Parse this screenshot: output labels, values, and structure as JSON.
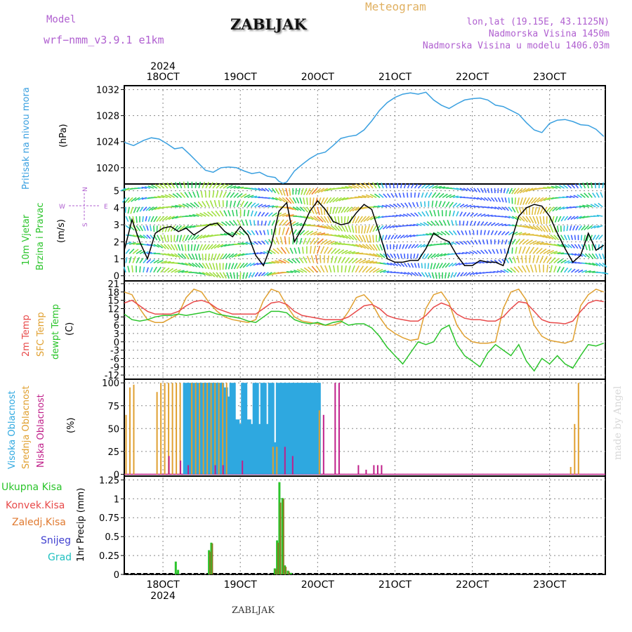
{
  "header": {
    "model_label": "Model",
    "model_name": "wrf−nmm_v3.9.1  e1km",
    "station_title": "ZABLJAK",
    "meteogram_label": "Meteogram",
    "lonlat": "lon,lat (19.15E, 43.1125N)",
    "elevation": "Nadmorska Visina 1450m",
    "model_elevation": "Nadmorska Visina u modelu 1406.03m",
    "watermark": "made by Angel",
    "footer_name": "ZABLJAK"
  },
  "colors": {
    "pressure": "#3aa0e0",
    "temp2m": "#e84a4a",
    "sfc_temp": "#e0a030",
    "dewpt": "#2bc42b",
    "high_cloud": "#2ea8e0",
    "mid_cloud": "#e0a030",
    "low_cloud": "#c0208a",
    "precip_total": "#2bc42b",
    "precip_conv": "#e84a4a",
    "precip_strat": "#e07a30",
    "snow": "#4040d0",
    "graupel": "#20c0c0",
    "title_purple": "#b060d0",
    "meteogram_orange": "#e0b060"
  },
  "time_axis": {
    "year": "2024",
    "ticks": [
      "18OCT",
      "19OCT",
      "20OCT",
      "21OCT",
      "22OCT",
      "23OCT"
    ],
    "day_range": [
      17.5,
      23.72
    ]
  },
  "chart_data": [
    {
      "type": "line",
      "panel": "pressure",
      "ylabel_lines": [
        "Pritisak na nivou mora"
      ],
      "unit": "(hPa)",
      "yticks": [
        "1020",
        "1024",
        "1028",
        "1032"
      ],
      "ylim": [
        1017.5,
        1032.6
      ],
      "grid": true,
      "series": [
        {
          "x": [
            17.5,
            17.62,
            17.75,
            17.85,
            17.95,
            18.05,
            18.15,
            18.25,
            18.35,
            18.45,
            18.55,
            18.65,
            18.75,
            18.85,
            18.95,
            19.05,
            19.15,
            19.25,
            19.35,
            19.45,
            19.5,
            19.55,
            19.6,
            19.7,
            19.8,
            19.9,
            20.0,
            20.1,
            20.2,
            20.3,
            20.4,
            20.5,
            20.6,
            20.7,
            20.8,
            20.9,
            21.0,
            21.1,
            21.2,
            21.3,
            21.4,
            21.5,
            21.6,
            21.7,
            21.8,
            21.9,
            22.0,
            22.1,
            22.2,
            22.3,
            22.4,
            22.5,
            22.6,
            22.7,
            22.8,
            22.9,
            23.0,
            23.1,
            23.2,
            23.3,
            23.4,
            23.5,
            23.6,
            23.7
          ],
          "y": [
            1023.9,
            1023.4,
            1024.2,
            1024.6,
            1024.4,
            1023.7,
            1022.9,
            1023.1,
            1022.0,
            1020.8,
            1019.6,
            1019.3,
            1020.0,
            1020.1,
            1020.0,
            1019.5,
            1019.1,
            1019.3,
            1018.7,
            1018.5,
            1017.9,
            1017.6,
            1017.8,
            1019.5,
            1020.5,
            1021.4,
            1022.1,
            1022.4,
            1023.4,
            1024.5,
            1024.8,
            1025.0,
            1025.8,
            1027.2,
            1028.8,
            1030.0,
            1030.8,
            1031.3,
            1031.5,
            1031.3,
            1031.6,
            1030.4,
            1029.6,
            1029.1,
            1029.8,
            1030.4,
            1030.6,
            1030.7,
            1030.4,
            1029.6,
            1029.4,
            1028.8,
            1028.2,
            1026.9,
            1025.8,
            1025.4,
            1026.8,
            1027.3,
            1027.4,
            1027.1,
            1026.6,
            1026.5,
            1025.9,
            1024.8
          ]
        }
      ]
    },
    {
      "type": "line",
      "panel": "wind",
      "ylabel_lines": [
        "10m  Vjetar",
        "Brzina  i Pravac"
      ],
      "unit": "(m/s)",
      "compass": {
        "n": "N",
        "s": "S",
        "w": "W",
        "e": "E"
      },
      "yticks": [
        "0",
        "1",
        "2",
        "3",
        "4",
        "5"
      ],
      "ylim": [
        -0.3,
        5.4
      ],
      "grid": true,
      "series": [
        {
          "name": "speed",
          "x": [
            17.5,
            17.6,
            17.7,
            17.8,
            17.9,
            18.0,
            18.1,
            18.2,
            18.3,
            18.4,
            18.5,
            18.6,
            18.7,
            18.8,
            18.9,
            19.0,
            19.1,
            19.2,
            19.3,
            19.4,
            19.5,
            19.6,
            19.7,
            19.8,
            19.9,
            20.0,
            20.1,
            20.2,
            20.3,
            20.4,
            20.5,
            20.6,
            20.7,
            20.8,
            20.9,
            21.0,
            21.1,
            21.2,
            21.3,
            21.4,
            21.5,
            21.6,
            21.7,
            21.8,
            21.9,
            22.0,
            22.1,
            22.2,
            22.3,
            22.4,
            22.5,
            22.6,
            22.7,
            22.8,
            22.9,
            23.0,
            23.1,
            23.2,
            23.3,
            23.4,
            23.5,
            23.6,
            23.7
          ],
          "y": [
            1.5,
            3.3,
            2.0,
            1.0,
            2.5,
            2.8,
            2.9,
            2.6,
            2.8,
            2.4,
            2.7,
            3.0,
            3.1,
            2.6,
            2.3,
            2.9,
            2.4,
            1.2,
            0.6,
            1.8,
            3.8,
            4.3,
            2.0,
            2.8,
            3.8,
            4.4,
            3.9,
            3.2,
            3.0,
            3.1,
            3.7,
            4.2,
            3.9,
            2.5,
            1.0,
            0.8,
            0.8,
            0.9,
            0.9,
            1.6,
            2.5,
            2.2,
            2.0,
            1.2,
            0.6,
            0.6,
            0.9,
            0.8,
            0.8,
            0.6,
            2.0,
            3.5,
            4.0,
            4.2,
            4.1,
            3.5,
            2.5,
            1.6,
            0.8,
            1.2,
            2.5,
            1.5,
            1.8
          ]
        }
      ]
    },
    {
      "type": "line",
      "panel": "temperature",
      "ylabel_lines": [
        "2m  Temp",
        "SFC  Temp",
        "dewpt  Temp"
      ],
      "unit": "(C)",
      "yticks": [
        "21",
        "18",
        "15",
        "12",
        "9",
        "6",
        "3",
        "0",
        "-3",
        "-6",
        "-9",
        "-12"
      ],
      "ylim": [
        -13.5,
        22
      ],
      "grid": true,
      "series": [
        {
          "name": "2m Temp",
          "x": [
            17.5,
            17.6,
            17.7,
            17.8,
            17.9,
            18.0,
            18.1,
            18.2,
            18.3,
            18.4,
            18.5,
            18.6,
            18.7,
            18.8,
            18.9,
            19.0,
            19.1,
            19.2,
            19.3,
            19.4,
            19.5,
            19.6,
            19.7,
            19.8,
            19.9,
            20.0,
            20.1,
            20.2,
            20.3,
            20.4,
            20.5,
            20.6,
            20.7,
            20.8,
            20.9,
            21.0,
            21.1,
            21.2,
            21.3,
            21.4,
            21.5,
            21.6,
            21.7,
            21.8,
            21.9,
            22.0,
            22.1,
            22.2,
            22.3,
            22.4,
            22.5,
            22.6,
            22.7,
            22.8,
            22.9,
            23.0,
            23.1,
            23.2,
            23.3,
            23.4,
            23.5,
            23.6,
            23.7
          ],
          "y": [
            14.0,
            15.0,
            13.0,
            11.0,
            10.0,
            10.0,
            10.0,
            11.0,
            13.0,
            14.5,
            15.0,
            14.0,
            12.0,
            11.0,
            10.0,
            10.0,
            10.0,
            10.0,
            12.0,
            14.0,
            14.5,
            13.5,
            11.0,
            9.5,
            9.0,
            8.5,
            8.0,
            8.0,
            8.0,
            9.0,
            11.0,
            13.0,
            13.5,
            12.0,
            9.5,
            8.5,
            8.0,
            7.5,
            7.5,
            9.5,
            12.5,
            14.0,
            13.0,
            10.0,
            8.5,
            8.0,
            8.0,
            7.5,
            7.5,
            9.0,
            12.0,
            14.5,
            14.0,
            11.0,
            8.0,
            7.0,
            6.8,
            6.5,
            7.5,
            11.0,
            14.0,
            15.0,
            14.5
          ]
        },
        {
          "name": "SFC Temp",
          "x": [
            17.5,
            17.6,
            17.7,
            17.8,
            17.9,
            18.0,
            18.1,
            18.2,
            18.3,
            18.4,
            18.5,
            18.6,
            18.7,
            18.8,
            18.9,
            19.0,
            19.1,
            19.2,
            19.3,
            19.4,
            19.5,
            19.6,
            19.7,
            19.8,
            19.9,
            20.0,
            20.1,
            20.2,
            20.3,
            20.4,
            20.5,
            20.6,
            20.7,
            20.8,
            20.9,
            21.0,
            21.1,
            21.2,
            21.3,
            21.4,
            21.5,
            21.6,
            21.7,
            21.8,
            21.9,
            22.0,
            22.1,
            22.2,
            22.3,
            22.4,
            22.5,
            22.6,
            22.7,
            22.8,
            22.9,
            23.0,
            23.1,
            23.2,
            23.3,
            23.4,
            23.5,
            23.6,
            23.7
          ],
          "y": [
            18.0,
            17.0,
            12.0,
            8.0,
            7.0,
            7.0,
            8.5,
            10.0,
            16.0,
            19.0,
            18.0,
            14.0,
            11.0,
            9.0,
            8.0,
            7.5,
            7.0,
            8.0,
            15.0,
            19.0,
            18.0,
            13.0,
            9.0,
            7.5,
            7.0,
            6.5,
            6.0,
            6.0,
            7.0,
            11.0,
            16.0,
            17.0,
            14.0,
            9.0,
            5.0,
            3.0,
            1.5,
            0.5,
            1.0,
            12.0,
            17.0,
            18.0,
            14.0,
            6.0,
            2.0,
            0.0,
            -0.5,
            -0.5,
            0.0,
            12.0,
            18.0,
            19.0,
            15.0,
            6.0,
            2.0,
            0.5,
            0.0,
            -0.5,
            0.5,
            13.0,
            17.0,
            19.0,
            18.0
          ]
        },
        {
          "name": "dewpt Temp",
          "x": [
            17.5,
            17.6,
            17.7,
            17.8,
            17.9,
            18.0,
            18.1,
            18.2,
            18.3,
            18.4,
            18.5,
            18.6,
            18.7,
            18.8,
            18.9,
            19.0,
            19.1,
            19.2,
            19.3,
            19.4,
            19.5,
            19.6,
            19.7,
            19.8,
            19.9,
            20.0,
            20.1,
            20.2,
            20.3,
            20.4,
            20.5,
            20.6,
            20.7,
            20.8,
            20.9,
            21.0,
            21.1,
            21.2,
            21.3,
            21.4,
            21.5,
            21.6,
            21.7,
            21.8,
            21.9,
            22.0,
            22.1,
            22.2,
            22.3,
            22.4,
            22.5,
            22.6,
            22.7,
            22.8,
            22.9,
            23.0,
            23.1,
            23.2,
            23.3,
            23.4,
            23.5,
            23.6,
            23.7
          ],
          "y": [
            10.0,
            8.0,
            7.5,
            8.0,
            9.0,
            9.5,
            9.5,
            10.0,
            9.5,
            10.0,
            10.5,
            11.0,
            10.0,
            9.5,
            9.0,
            8.5,
            7.5,
            7.0,
            9.0,
            11.0,
            11.0,
            10.5,
            8.0,
            7.0,
            6.5,
            7.0,
            6.0,
            7.0,
            7.5,
            6.0,
            6.5,
            6.5,
            5.0,
            2.0,
            -2.0,
            -5.0,
            -8.0,
            -4.0,
            0.0,
            -1.0,
            0.0,
            4.5,
            6.0,
            -1.0,
            -5.0,
            -7.0,
            -9.0,
            -4.0,
            -1.0,
            -3.0,
            -5.0,
            -1.0,
            -7.0,
            -10.5,
            -6.0,
            -8.0,
            -5.0,
            -8.0,
            -9.5,
            -5.0,
            -1.0,
            -1.5,
            -0.5
          ]
        }
      ]
    },
    {
      "type": "bar",
      "panel": "cloud",
      "ylabel_lines": [
        "Visoka  Oblacnost",
        "Srednja  Oblacnost",
        "Niska  Oblacnost"
      ],
      "unit": "(%)",
      "yticks": [
        "0",
        "25",
        "50",
        "75",
        "100"
      ],
      "ylim": [
        -2,
        104
      ],
      "grid": true,
      "series": [
        {
          "name": "Visoka Oblacnost",
          "x": [
            18.3,
            18.35,
            18.4,
            18.45,
            18.5,
            18.55,
            18.6,
            18.65,
            18.7,
            18.75,
            18.8,
            18.85,
            18.9,
            18.95,
            19.0,
            19.05,
            19.1,
            19.15,
            19.2,
            19.25,
            19.3,
            19.35,
            19.4,
            19.45,
            19.5,
            19.55,
            19.6,
            19.65,
            19.7,
            19.75,
            19.8,
            19.85,
            19.9,
            19.95,
            20.0
          ],
          "y": [
            100,
            100,
            100,
            100,
            100,
            100,
            100,
            100,
            100,
            100,
            95,
            85,
            100,
            60,
            55,
            100,
            60,
            55,
            100,
            55,
            100,
            55,
            100,
            35,
            100,
            100,
            100,
            100,
            100,
            100,
            100,
            100,
            100,
            100,
            100
          ]
        },
        {
          "name": "Srednja Oblacnost",
          "x": [
            17.55,
            17.6,
            17.65,
            17.95,
            18.0,
            18.05,
            18.1,
            18.15,
            18.2,
            18.25,
            18.4,
            18.45,
            18.5,
            18.55,
            18.6,
            18.65,
            18.7,
            18.75,
            18.8,
            18.85,
            19.45,
            19.5,
            20.05,
            23.3,
            23.35,
            23.4
          ],
          "y": [
            65,
            95,
            98,
            90,
            100,
            100,
            100,
            100,
            100,
            100,
            100,
            100,
            100,
            100,
            100,
            100,
            100,
            100,
            100,
            100,
            30,
            30,
            70,
            8,
            55,
            100
          ]
        },
        {
          "name": "Niska Oblacnost",
          "x": [
            18.05,
            18.2,
            18.3,
            18.65,
            18.75,
            19.0,
            19.55,
            19.65,
            20.05,
            20.2,
            20.25,
            20.5,
            20.6,
            20.7,
            20.75,
            20.8
          ],
          "y": [
            20,
            15,
            10,
            10,
            10,
            15,
            30,
            20,
            65,
            100,
            100,
            10,
            5,
            10,
            10,
            10
          ]
        }
      ]
    },
    {
      "type": "bar",
      "panel": "precipitation",
      "ylabel_lines": [
        "1hr  Precip  (mm)"
      ],
      "legend": [
        "Ukupna  Kisa",
        "Konvek.Kisa",
        "Zaledj.Kisa",
        "Snijeg",
        "Grad"
      ],
      "yticks": [
        "0",
        "0.25",
        "0.5",
        "0.75",
        "1",
        "1.25"
      ],
      "ylim": [
        0,
        1.3
      ],
      "grid": true,
      "series": [
        {
          "name": "Ukupna Kisa",
          "x": [
            18.17,
            18.2,
            18.6,
            18.63,
            19.45,
            19.48,
            19.51,
            19.55,
            19.58,
            19.62,
            19.66
          ],
          "y": [
            0.17,
            0.06,
            0.32,
            0.42,
            0.08,
            0.45,
            1.22,
            1.01,
            0.12,
            0.05,
            0.02
          ]
        },
        {
          "name": "Zaledj.Kisa",
          "x": [
            18.6,
            18.63,
            19.45,
            19.48,
            19.51,
            19.55,
            19.58,
            19.62
          ],
          "y": [
            0.3,
            0.41,
            0.07,
            0.42,
            0.95,
            1.0,
            0.1,
            0.04
          ]
        }
      ]
    }
  ]
}
